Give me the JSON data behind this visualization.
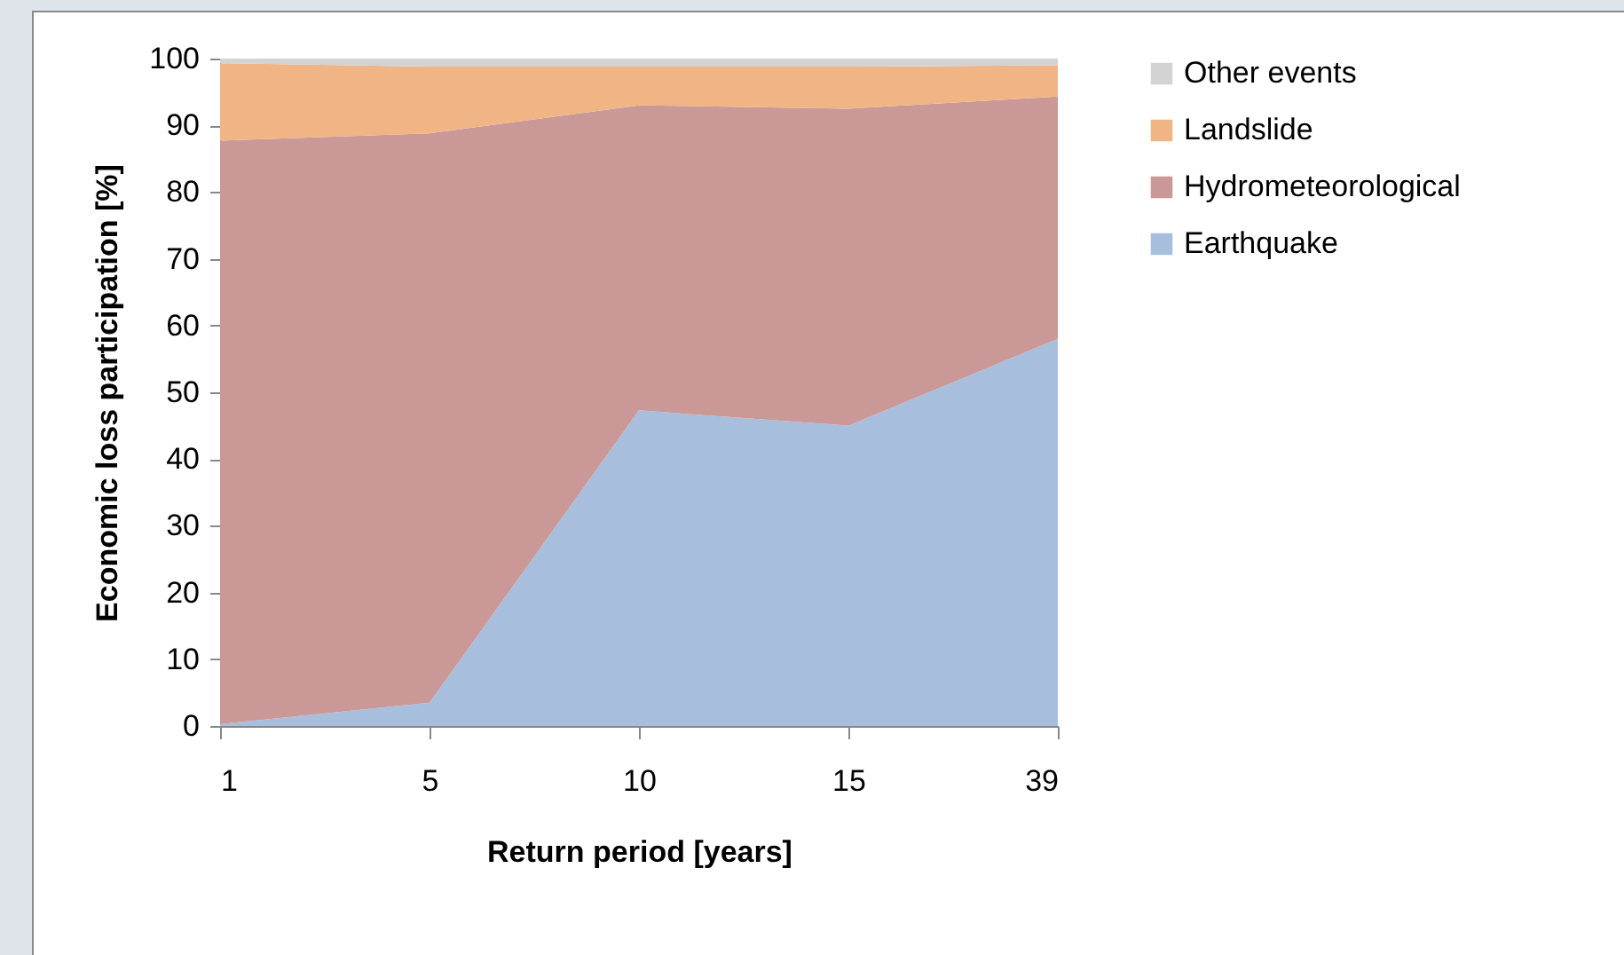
{
  "chart_data": {
    "type": "area",
    "stacked": true,
    "xlabel": "Return period [years]",
    "ylabel": "Economic loss participation  [%]",
    "categories": [
      "1",
      "5",
      "10",
      "15",
      "39"
    ],
    "series": [
      {
        "name": "Earthquake",
        "color": "#a7bfdd",
        "values": [
          0.3,
          3.5,
          47.3,
          45,
          58
        ]
      },
      {
        "name": "Hydrometeorological",
        "color": "#c99897",
        "values": [
          87.4,
          85.3,
          45.7,
          47.5,
          36.3
        ]
      },
      {
        "name": "Landslide",
        "color": "#f0b485",
        "values": [
          11.6,
          10,
          5.8,
          6.3,
          4.7
        ]
      },
      {
        "name": "Other events",
        "color": "#d3d3d3",
        "values": [
          0.7,
          1.2,
          1.2,
          1.2,
          1.0
        ]
      }
    ],
    "ylim": [
      0,
      100
    ],
    "yticks": [
      0,
      10,
      20,
      30,
      40,
      50,
      60,
      70,
      80,
      90,
      100
    ],
    "grid": false,
    "legend": "right"
  }
}
